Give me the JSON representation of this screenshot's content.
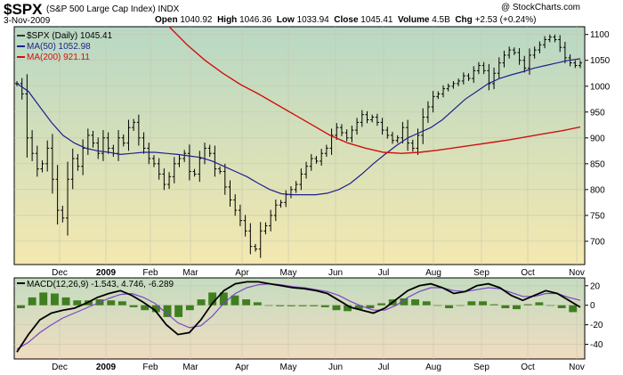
{
  "header": {
    "symbol": "$SPX",
    "name": "(S&P 500 Large Cap Index)",
    "exchange": "INDX",
    "date": "3-Nov-2009",
    "watermark": "@ StockCharts.com",
    "open_label": "Open",
    "open": "1040.92",
    "high_label": "High",
    "high": "1046.36",
    "low_label": "Low",
    "low": "1033.94",
    "close_label": "Close",
    "close": "1045.41",
    "volume_label": "Volume",
    "volume": "4.5B",
    "chg_label": "Chg",
    "chg": "+2.53 (+0.24%)"
  },
  "legend": {
    "price": "$SPX (Daily) 1045.41",
    "ma50": "MA(50) 1052.98",
    "ma200": "MA(200) 921.11",
    "macd": "MACD(12,26,9) -1.543, 4.746, -6.289"
  },
  "colors": {
    "price": "#000000",
    "ma50": "#1f1f8f",
    "ma200": "#d01010",
    "macd_line": "#000000",
    "signal_line": "#7a44c8",
    "histogram": "#3f7f1f",
    "panel_top": "#b8d8c4",
    "panel_bottom": "#f4e8b0",
    "macd_top": "#c4dcc0",
    "macd_bottom": "#f0dcc0"
  },
  "chart_data": [
    {
      "type": "line",
      "subtype": "ohlc-bars",
      "title": "$SPX (S&P 500 Large Cap Index) INDX",
      "x_ticks": [
        "Dec",
        "2009",
        "Feb",
        "Mar",
        "Apr",
        "May",
        "Jun",
        "Jul",
        "Aug",
        "Sep",
        "Oct",
        "Nov"
      ],
      "y_ticks": [
        700,
        750,
        800,
        850,
        900,
        950,
        1000,
        1050,
        1100
      ],
      "ylim": [
        655,
        1115
      ],
      "grid": true,
      "legend_position": "top-left",
      "series": [
        {
          "name": "$SPX (Daily)",
          "style": "ohlc",
          "values": [
            1005,
            985,
            900,
            870,
            840,
            850,
            880,
            820,
            760,
            745,
            820,
            860,
            845,
            880,
            905,
            890,
            870,
            900,
            880,
            870,
            900,
            890,
            920,
            930,
            900,
            880,
            860,
            850,
            830,
            810,
            825,
            850,
            860,
            870,
            835,
            830,
            860,
            880,
            870,
            840,
            835,
            805,
            780,
            760,
            740,
            720,
            690,
            685,
            720,
            730,
            750,
            770,
            775,
            790,
            800,
            810,
            830,
            845,
            860,
            855,
            870,
            880,
            905,
            920,
            910,
            900,
            915,
            930,
            945,
            935,
            940,
            930,
            915,
            905,
            895,
            900,
            920,
            890,
            880,
            905,
            940,
            960,
            980,
            985,
            995,
            1000,
            1005,
            1010,
            1020,
            1015,
            1030,
            1040,
            1030,
            1005,
            1025,
            1045,
            1060,
            1070,
            1065,
            1050,
            1035,
            1060,
            1070,
            1080,
            1090,
            1095,
            1090,
            1075,
            1055,
            1045,
            1040,
            1045
          ]
        },
        {
          "name": "MA(50)",
          "values": [
            1005,
            990,
            960,
            930,
            905,
            890,
            880,
            875,
            872,
            868,
            870,
            872,
            872,
            870,
            868,
            865,
            862,
            855,
            845,
            835,
            825,
            812,
            800,
            792,
            790,
            790,
            790,
            793,
            800,
            812,
            830,
            850,
            868,
            885,
            900,
            910,
            920,
            935,
            955,
            975,
            990,
            1005,
            1015,
            1022,
            1028,
            1035,
            1040,
            1045,
            1050,
            1053
          ]
        },
        {
          "name": "MA(200)",
          "values": [
            1150,
            1115,
            1080,
            1050,
            1025,
            1003,
            985,
            965,
            945,
            925,
            905,
            890,
            880,
            872,
            870,
            872,
            876,
            881,
            886,
            891,
            896,
            902,
            908,
            914,
            921
          ]
        }
      ]
    },
    {
      "type": "line",
      "title": "MACD(12,26,9)",
      "x_ticks": [
        "Dec",
        "2009",
        "Feb",
        "Mar",
        "Apr",
        "May",
        "Jun",
        "Jul",
        "Aug",
        "Sep",
        "Oct",
        "Nov"
      ],
      "y_ticks": [
        -40,
        -20,
        0,
        20
      ],
      "ylim": [
        -55,
        28
      ],
      "series": [
        {
          "name": "MACD",
          "values": [
            -48,
            -30,
            -15,
            -8,
            -5,
            -3,
            2,
            8,
            12,
            15,
            10,
            3,
            -5,
            -20,
            -30,
            -28,
            -15,
            2,
            15,
            22,
            24,
            24,
            22,
            20,
            18,
            17,
            15,
            12,
            5,
            -2,
            -5,
            -8,
            -3,
            6,
            15,
            20,
            22,
            18,
            12,
            14,
            20,
            22,
            18,
            10,
            5,
            10,
            15,
            12,
            5,
            -2
          ]
        },
        {
          "name": "Signal",
          "values": [
            -45,
            -38,
            -28,
            -20,
            -13,
            -8,
            -3,
            2,
            7,
            11,
            12,
            8,
            2,
            -8,
            -18,
            -23,
            -21,
            -11,
            2,
            12,
            18,
            21,
            22,
            21,
            19,
            18,
            16,
            14,
            10,
            4,
            -1,
            -5,
            -5,
            0,
            8,
            14,
            18,
            18,
            15,
            14,
            16,
            18,
            17,
            13,
            9,
            9,
            12,
            12,
            8,
            5
          ]
        },
        {
          "name": "Histogram",
          "values": [
            -3,
            8,
            13,
            12,
            8,
            5,
            5,
            6,
            5,
            4,
            -2,
            -5,
            -7,
            -12,
            -12,
            -5,
            6,
            13,
            13,
            10,
            6,
            3,
            0,
            -1,
            -1,
            -1,
            -1,
            -2,
            -5,
            -6,
            -4,
            -3,
            2,
            6,
            7,
            6,
            4,
            0,
            -3,
            0,
            4,
            4,
            1,
            -3,
            -4,
            1,
            3,
            0,
            -3,
            -7
          ]
        }
      ]
    }
  ]
}
